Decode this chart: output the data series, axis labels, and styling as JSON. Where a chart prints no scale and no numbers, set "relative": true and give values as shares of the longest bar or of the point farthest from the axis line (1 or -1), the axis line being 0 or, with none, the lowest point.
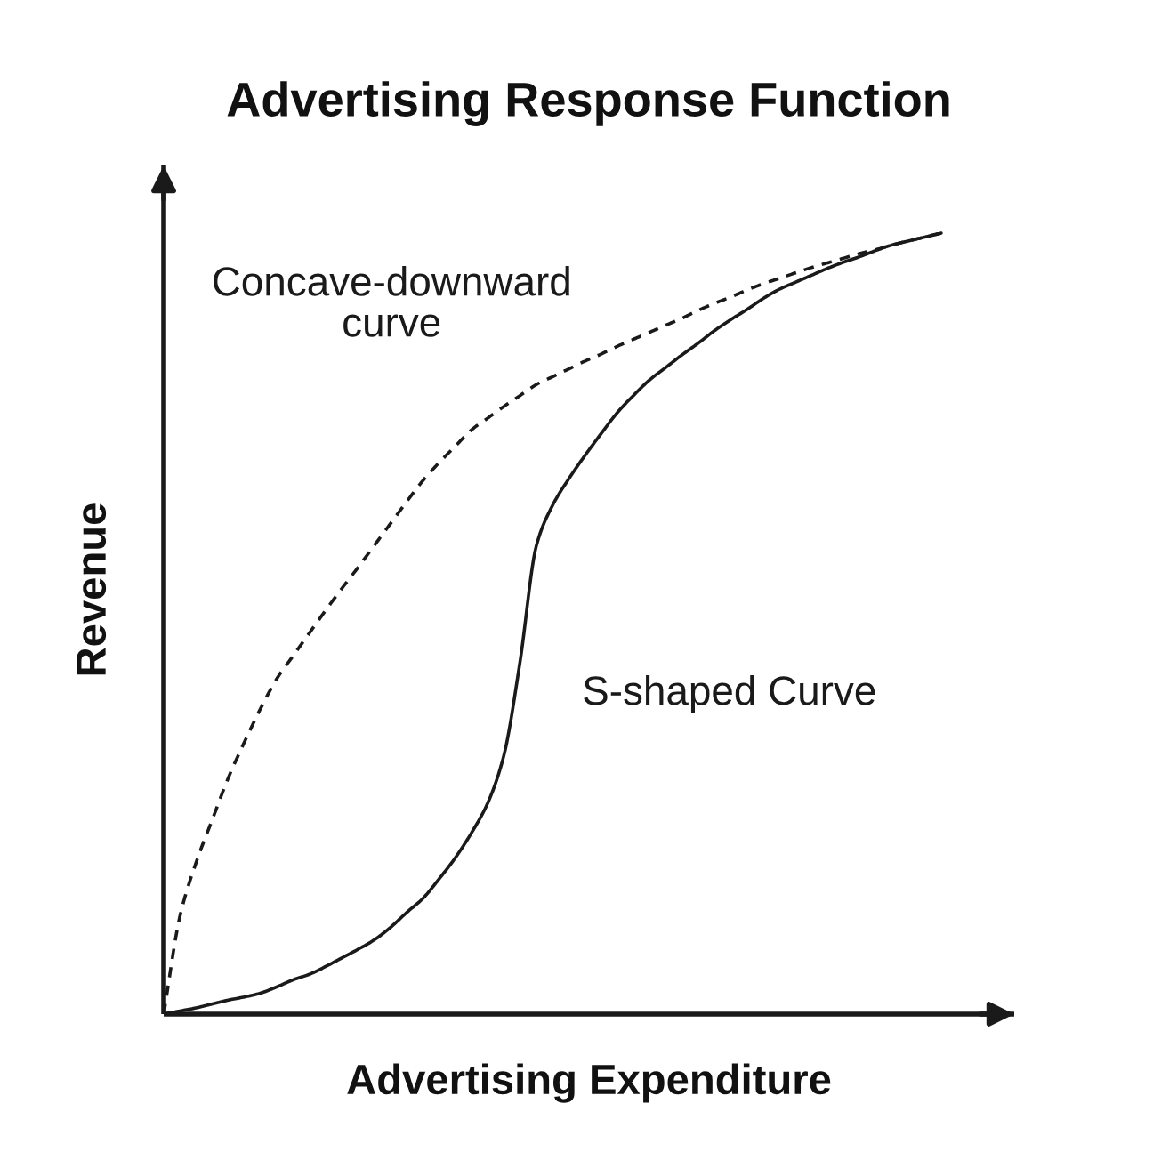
{
  "chart_data": {
    "type": "line",
    "title": "Advertising Response Function",
    "xlabel": "Advertising Expenditure",
    "ylabel": "Revenue",
    "relative": true,
    "categories": [
      null,
      null,
      null,
      null,
      null,
      null,
      null,
      null,
      null,
      null,
      null,
      null,
      null,
      null,
      null,
      null,
      null,
      null,
      null,
      null,
      null,
      null,
      null,
      null,
      null,
      null,
      null,
      null,
      null,
      null,
      null,
      null,
      null,
      null,
      null,
      null,
      null,
      null,
      null,
      null,
      null,
      null,
      null,
      null,
      null,
      null,
      null,
      null,
      null
    ],
    "series": [
      {
        "name": "Concave-downward\ncurve",
        "color": "#1a1a1a",
        "line_style": "dashed",
        "values": [
          0,
          0.125,
          0.194,
          0.249,
          0.303,
          0.349,
          0.392,
          0.43,
          0.459,
          0.488,
          0.517,
          0.545,
          0.572,
          0.6,
          0.628,
          0.656,
          0.683,
          0.706,
          0.727,
          0.748,
          0.763,
          0.778,
          0.792,
          0.806,
          0.816,
          0.826,
          0.836,
          0.845,
          0.855,
          0.864,
          0.873,
          0.882,
          0.891,
          0.901,
          0.91,
          0.918,
          0.927,
          0.935,
          0.942,
          0.949,
          0.956,
          0.962,
          0.968,
          0.974,
          0.979,
          0.985,
          0.99,
          0.995,
          1.0
        ]
      },
      {
        "name": "S-shaped Curve",
        "color": "#1a1a1a",
        "line_style": "solid",
        "values": [
          0,
          0.004,
          0.008,
          0.013,
          0.018,
          0.022,
          0.027,
          0.035,
          0.044,
          0.051,
          0.061,
          0.072,
          0.083,
          0.095,
          0.111,
          0.13,
          0.148,
          0.173,
          0.2,
          0.232,
          0.27,
          0.331,
          0.451,
          0.599,
          0.651,
          0.685,
          0.715,
          0.743,
          0.77,
          0.792,
          0.812,
          0.828,
          0.844,
          0.859,
          0.875,
          0.889,
          0.902,
          0.916,
          0.928,
          0.937,
          0.946,
          0.955,
          0.963,
          0.97,
          0.978,
          0.985,
          0.99,
          0.995,
          1.0
        ]
      }
    ]
  }
}
